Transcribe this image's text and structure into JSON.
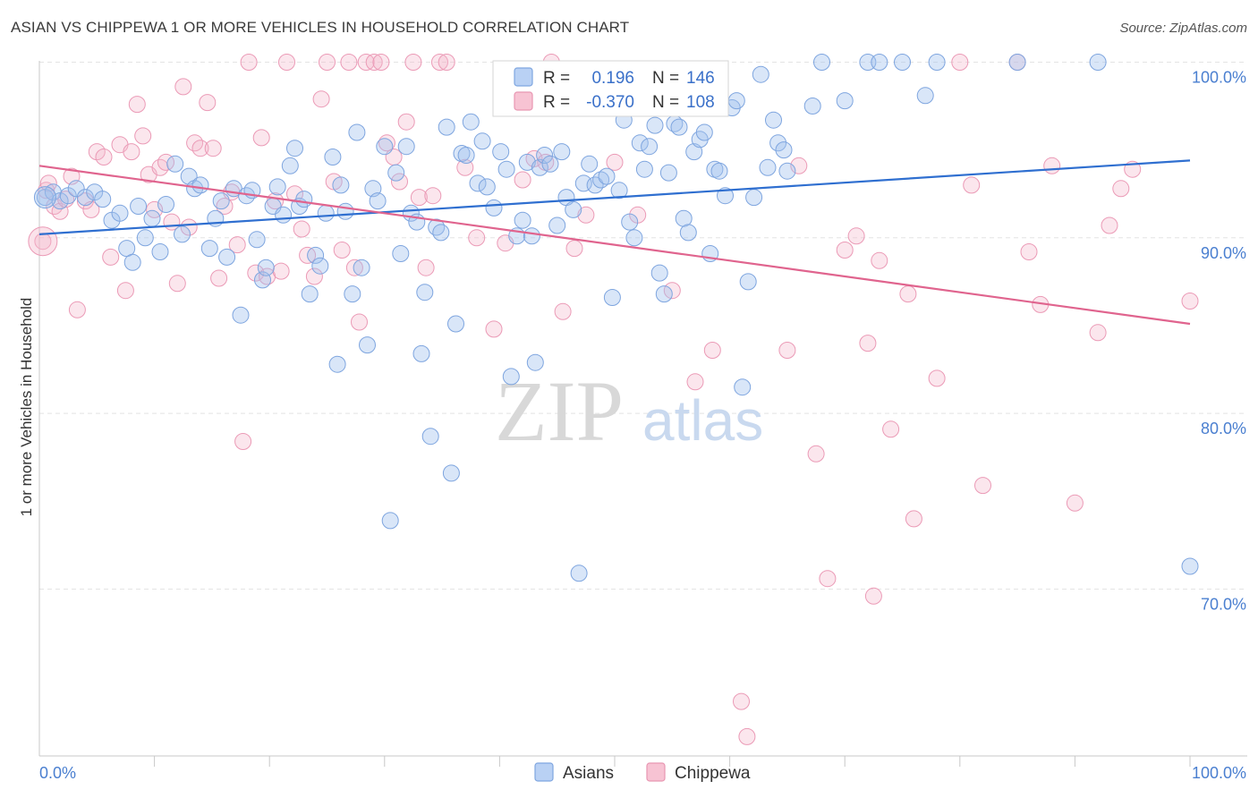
{
  "title": "ASIAN VS CHIPPEWA 1 OR MORE VEHICLES IN HOUSEHOLD CORRELATION CHART",
  "source": "Source: ZipAtlas.com",
  "watermark": {
    "zip": "ZIP",
    "atlas": "atlas"
  },
  "legend": {
    "r_label": "R =",
    "n_label": "N =",
    "rows": [
      {
        "r": "0.196",
        "n": "146"
      },
      {
        "r": "-0.370",
        "n": "108"
      }
    ]
  },
  "chart_data": {
    "type": "scatter",
    "title": "ASIAN VS CHIPPEWA 1 OR MORE VEHICLES IN HOUSEHOLD CORRELATION CHART",
    "xlabel": "",
    "ylabel": "1 or more Vehicles in Household",
    "xlim": [
      0,
      100
    ],
    "ylim": [
      60.5,
      101.5
    ],
    "x_tick_labels": [
      "0.0%",
      "100.0%"
    ],
    "y_ticks": [
      70,
      80,
      90,
      100
    ],
    "y_tick_labels": [
      "70.0%",
      "80.0%",
      "90.0%",
      "100.0%"
    ],
    "grid": true,
    "legend_position": "top-center",
    "colors": {
      "Asians": "#8fb4ea",
      "Chippewa": "#f1a6bf",
      "asian_line": "#2f6fd0",
      "chippewa_line": "#e0648e"
    },
    "series": [
      {
        "name": "Asians",
        "r": 0.196,
        "n": 146,
        "trend": {
          "x": [
            0,
            100
          ],
          "y": [
            90.2,
            94.4
          ]
        },
        "points": [
          [
            0.5,
            92.3
          ],
          [
            1.2,
            92.6
          ],
          [
            1.8,
            92.1
          ],
          [
            2.5,
            92.4
          ],
          [
            3.2,
            92.8
          ],
          [
            4.0,
            92.3
          ],
          [
            4.8,
            92.6
          ],
          [
            5.5,
            92.2
          ],
          [
            6.3,
            91.0
          ],
          [
            7.0,
            91.4
          ],
          [
            7.6,
            89.4
          ],
          [
            8.1,
            88.6
          ],
          [
            8.6,
            91.8
          ],
          [
            9.2,
            90.0
          ],
          [
            9.8,
            91.1
          ],
          [
            10.5,
            89.2
          ],
          [
            11.0,
            91.9
          ],
          [
            11.8,
            94.2
          ],
          [
            12.4,
            90.2
          ],
          [
            13.0,
            93.5
          ],
          [
            13.5,
            92.8
          ],
          [
            14.0,
            93.0
          ],
          [
            14.8,
            89.4
          ],
          [
            15.3,
            91.1
          ],
          [
            15.8,
            92.1
          ],
          [
            16.3,
            88.9
          ],
          [
            16.9,
            92.8
          ],
          [
            17.5,
            85.6
          ],
          [
            18.0,
            92.4
          ],
          [
            18.5,
            92.7
          ],
          [
            18.9,
            89.9
          ],
          [
            19.4,
            87.6
          ],
          [
            19.7,
            88.3
          ],
          [
            20.3,
            91.8
          ],
          [
            20.7,
            92.9
          ],
          [
            21.2,
            91.3
          ],
          [
            21.8,
            94.1
          ],
          [
            22.2,
            95.1
          ],
          [
            22.6,
            91.8
          ],
          [
            23.0,
            92.2
          ],
          [
            23.5,
            86.8
          ],
          [
            24.0,
            89.0
          ],
          [
            24.4,
            88.4
          ],
          [
            24.9,
            91.4
          ],
          [
            25.5,
            94.6
          ],
          [
            25.9,
            82.8
          ],
          [
            26.2,
            93.0
          ],
          [
            26.6,
            91.5
          ],
          [
            27.2,
            86.8
          ],
          [
            27.6,
            96.0
          ],
          [
            28.0,
            88.3
          ],
          [
            28.5,
            83.9
          ],
          [
            29.0,
            92.8
          ],
          [
            29.4,
            92.1
          ],
          [
            30.0,
            95.2
          ],
          [
            30.5,
            73.9
          ],
          [
            31.0,
            93.7
          ],
          [
            31.4,
            89.1
          ],
          [
            31.9,
            95.2
          ],
          [
            32.3,
            91.4
          ],
          [
            32.8,
            90.9
          ],
          [
            33.2,
            83.4
          ],
          [
            33.5,
            86.9
          ],
          [
            34.0,
            78.7
          ],
          [
            34.5,
            90.6
          ],
          [
            34.9,
            90.3
          ],
          [
            35.4,
            96.3
          ],
          [
            35.8,
            76.6
          ],
          [
            36.2,
            85.1
          ],
          [
            36.7,
            94.8
          ],
          [
            37.1,
            94.7
          ],
          [
            37.5,
            96.6
          ],
          [
            38.1,
            93.1
          ],
          [
            38.5,
            95.5
          ],
          [
            38.9,
            92.9
          ],
          [
            39.5,
            91.7
          ],
          [
            40.1,
            94.9
          ],
          [
            40.6,
            93.9
          ],
          [
            41.0,
            82.1
          ],
          [
            41.5,
            90.1
          ],
          [
            42.0,
            91.0
          ],
          [
            42.4,
            94.3
          ],
          [
            42.8,
            90.1
          ],
          [
            43.1,
            82.9
          ],
          [
            43.5,
            94.0
          ],
          [
            43.9,
            94.7
          ],
          [
            44.4,
            94.2
          ],
          [
            45.0,
            90.7
          ],
          [
            45.4,
            94.9
          ],
          [
            45.8,
            92.3
          ],
          [
            46.4,
            91.6
          ],
          [
            46.9,
            70.9
          ],
          [
            47.3,
            93.1
          ],
          [
            47.8,
            94.2
          ],
          [
            48.3,
            93.0
          ],
          [
            48.8,
            93.3
          ],
          [
            49.3,
            93.5
          ],
          [
            49.8,
            86.6
          ],
          [
            50.4,
            92.7
          ],
          [
            50.8,
            96.7
          ],
          [
            51.3,
            90.9
          ],
          [
            51.7,
            90.0
          ],
          [
            52.2,
            95.4
          ],
          [
            52.6,
            93.9
          ],
          [
            53.0,
            95.2
          ],
          [
            53.5,
            96.4
          ],
          [
            53.9,
            88.0
          ],
          [
            54.3,
            86.8
          ],
          [
            54.7,
            93.7
          ],
          [
            55.2,
            96.5
          ],
          [
            55.6,
            96.3
          ],
          [
            56.0,
            91.1
          ],
          [
            56.4,
            90.3
          ],
          [
            56.9,
            94.9
          ],
          [
            57.4,
            95.6
          ],
          [
            57.8,
            96.0
          ],
          [
            58.3,
            89.1
          ],
          [
            58.7,
            93.9
          ],
          [
            59.1,
            93.8
          ],
          [
            59.6,
            92.4
          ],
          [
            60.2,
            97.4
          ],
          [
            60.6,
            97.8
          ],
          [
            61.1,
            81.5
          ],
          [
            61.6,
            87.5
          ],
          [
            62.1,
            92.3
          ],
          [
            62.7,
            99.3
          ],
          [
            63.3,
            94.0
          ],
          [
            63.8,
            96.7
          ],
          [
            64.2,
            95.4
          ],
          [
            64.7,
            95.0
          ],
          [
            65.0,
            93.8
          ],
          [
            67.2,
            97.5
          ],
          [
            68.0,
            100.0
          ],
          [
            70.0,
            97.8
          ],
          [
            72.0,
            100.0
          ],
          [
            73.0,
            100.0
          ],
          [
            75.0,
            100.0
          ],
          [
            77.0,
            98.1
          ],
          [
            78.0,
            100.0
          ],
          [
            85.0,
            100.0
          ],
          [
            92.0,
            100.0
          ],
          [
            100.0,
            71.3
          ]
        ]
      },
      {
        "name": "Chippewa",
        "r": -0.37,
        "n": 108,
        "trend": {
          "x": [
            0,
            100
          ],
          "y": [
            94.1,
            85.1
          ]
        },
        "points": [
          [
            0.3,
            89.8
          ],
          [
            0.6,
            92.7
          ],
          [
            0.8,
            93.1
          ],
          [
            1.3,
            91.8
          ],
          [
            1.8,
            91.5
          ],
          [
            2.3,
            92.2
          ],
          [
            2.8,
            93.5
          ],
          [
            3.3,
            85.9
          ],
          [
            4.0,
            92.1
          ],
          [
            4.5,
            91.6
          ],
          [
            5.0,
            94.9
          ],
          [
            5.6,
            94.6
          ],
          [
            6.2,
            88.9
          ],
          [
            7.0,
            95.3
          ],
          [
            7.5,
            87.0
          ],
          [
            8.0,
            94.9
          ],
          [
            8.5,
            97.6
          ],
          [
            9.0,
            95.8
          ],
          [
            9.5,
            93.6
          ],
          [
            10.0,
            91.6
          ],
          [
            10.5,
            94.0
          ],
          [
            11.0,
            94.3
          ],
          [
            11.5,
            90.9
          ],
          [
            12.0,
            87.4
          ],
          [
            12.5,
            98.6
          ],
          [
            13.0,
            90.6
          ],
          [
            13.5,
            95.4
          ],
          [
            14.0,
            95.1
          ],
          [
            14.6,
            97.7
          ],
          [
            15.1,
            95.1
          ],
          [
            15.6,
            87.7
          ],
          [
            16.1,
            91.8
          ],
          [
            16.7,
            92.6
          ],
          [
            17.2,
            89.6
          ],
          [
            17.7,
            78.4
          ],
          [
            18.2,
            100.0
          ],
          [
            18.8,
            88.0
          ],
          [
            19.3,
            95.7
          ],
          [
            19.8,
            87.8
          ],
          [
            20.5,
            92.1
          ],
          [
            21.0,
            88.1
          ],
          [
            21.5,
            100.0
          ],
          [
            22.2,
            92.5
          ],
          [
            22.8,
            90.5
          ],
          [
            23.3,
            89.0
          ],
          [
            23.9,
            87.8
          ],
          [
            24.5,
            97.9
          ],
          [
            25.0,
            100.0
          ],
          [
            25.6,
            93.2
          ],
          [
            26.3,
            89.3
          ],
          [
            26.9,
            100.0
          ],
          [
            27.4,
            88.3
          ],
          [
            27.8,
            85.2
          ],
          [
            28.4,
            100.0
          ],
          [
            29.1,
            100.0
          ],
          [
            29.7,
            100.0
          ],
          [
            30.2,
            95.4
          ],
          [
            30.8,
            94.6
          ],
          [
            31.3,
            93.2
          ],
          [
            31.9,
            96.6
          ],
          [
            32.5,
            100.0
          ],
          [
            33.0,
            92.3
          ],
          [
            33.6,
            88.3
          ],
          [
            34.2,
            92.4
          ],
          [
            34.8,
            100.0
          ],
          [
            35.4,
            100.0
          ],
          [
            37.0,
            94.0
          ],
          [
            38.0,
            90.0
          ],
          [
            39.5,
            84.8
          ],
          [
            40.5,
            89.7
          ],
          [
            42.0,
            93.3
          ],
          [
            43.0,
            94.5
          ],
          [
            44.0,
            94.3
          ],
          [
            44.5,
            100.0
          ],
          [
            45.5,
            85.8
          ],
          [
            46.5,
            89.4
          ],
          [
            47.5,
            91.3
          ],
          [
            50.0,
            94.3
          ],
          [
            50.8,
            99.3
          ],
          [
            52.0,
            91.3
          ],
          [
            55.0,
            87.0
          ],
          [
            57.0,
            81.8
          ],
          [
            58.5,
            83.6
          ],
          [
            61.0,
            63.6
          ],
          [
            61.5,
            61.6
          ],
          [
            65.0,
            83.6
          ],
          [
            66.0,
            94.1
          ],
          [
            67.5,
            77.7
          ],
          [
            68.5,
            70.6
          ],
          [
            70.0,
            89.3
          ],
          [
            71.0,
            90.1
          ],
          [
            72.0,
            84.0
          ],
          [
            72.5,
            69.6
          ],
          [
            73.0,
            88.7
          ],
          [
            74.0,
            79.1
          ],
          [
            75.5,
            86.8
          ],
          [
            76.0,
            74.0
          ],
          [
            78.0,
            82.0
          ],
          [
            80.0,
            100.0
          ],
          [
            81.0,
            93.0
          ],
          [
            82.0,
            75.9
          ],
          [
            85.0,
            100.0
          ],
          [
            86.0,
            89.2
          ],
          [
            87.0,
            86.2
          ],
          [
            88.0,
            94.1
          ],
          [
            90.0,
            74.9
          ],
          [
            92.0,
            84.6
          ],
          [
            93.0,
            90.7
          ],
          [
            94.0,
            92.8
          ],
          [
            95.0,
            93.9
          ],
          [
            100.0,
            86.4
          ]
        ]
      }
    ]
  }
}
